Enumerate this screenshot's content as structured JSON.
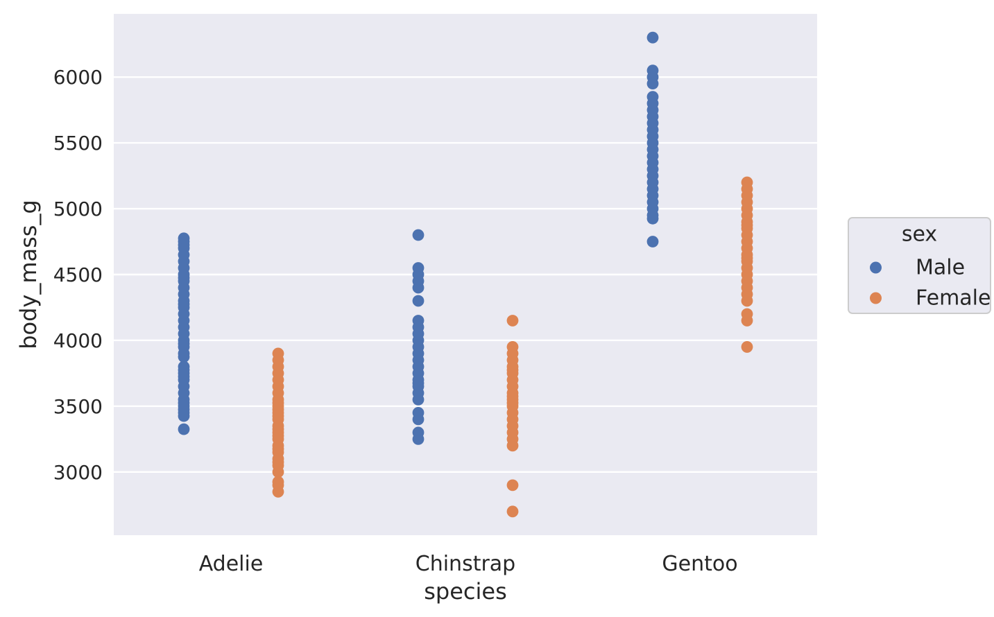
{
  "figure": {
    "background_color": "#ffffff",
    "axes_background_color": "#eaeaf2",
    "gridline_color": "#ffffff",
    "text_color": "#262626",
    "legend_border_color": "#cccccc"
  },
  "chart_data": {
    "type": "scatter",
    "title": "",
    "xlabel": "species",
    "ylabel": "body_mass_g",
    "categories": [
      "Adelie",
      "Chinstrap",
      "Gentoo"
    ],
    "yticks": [
      3000,
      3500,
      4000,
      4500,
      5000,
      5500,
      6000
    ],
    "ytick_labels": [
      "3000",
      "3500",
      "4000",
      "4500",
      "5000",
      "5500",
      "6000"
    ],
    "ylim": [
      2520,
      6480
    ],
    "grid": "horizontal white gridlines on",
    "marker": "filled circle, no jitter, dodged by hue",
    "legend": {
      "title": "sex",
      "position": "right of axes, vertically centered"
    },
    "series": [
      {
        "name": "Male",
        "color": "#4c72b0",
        "points_by_category": {
          "Adelie": [
            3325,
            3425,
            3450,
            3475,
            3500,
            3525,
            3550,
            3600,
            3650,
            3700,
            3725,
            3750,
            3775,
            3800,
            3875,
            3900,
            3950,
            3975,
            4000,
            4050,
            4100,
            4150,
            4200,
            4250,
            4275,
            4300,
            4350,
            4400,
            4450,
            4475,
            4500,
            4550,
            4600,
            4650,
            4700,
            4725,
            4750,
            4775
          ],
          "Chinstrap": [
            3250,
            3300,
            3400,
            3450,
            3550,
            3600,
            3650,
            3675,
            3700,
            3750,
            3800,
            3850,
            3900,
            3950,
            4000,
            4050,
            4100,
            4150,
            4300,
            4400,
            4450,
            4500,
            4550,
            4800
          ],
          "Gentoo": [
            4750,
            4925,
            4950,
            5000,
            5050,
            5100,
            5150,
            5200,
            5250,
            5300,
            5350,
            5400,
            5450,
            5500,
            5550,
            5600,
            5650,
            5700,
            5750,
            5800,
            5850,
            5950,
            6000,
            6050,
            6300
          ]
        }
      },
      {
        "name": "Female",
        "color": "#dd8452",
        "points_by_category": {
          "Adelie": [
            2850,
            2900,
            2925,
            3000,
            3050,
            3075,
            3100,
            3150,
            3175,
            3200,
            3250,
            3275,
            3300,
            3325,
            3350,
            3400,
            3425,
            3450,
            3475,
            3500,
            3525,
            3550,
            3600,
            3650,
            3700,
            3750,
            3800,
            3850,
            3900
          ],
          "Chinstrap": [
            2700,
            2900,
            3200,
            3250,
            3300,
            3350,
            3400,
            3450,
            3500,
            3525,
            3550,
            3575,
            3600,
            3650,
            3700,
            3750,
            3775,
            3800,
            3850,
            3900,
            3950,
            4150
          ],
          "Gentoo": [
            3950,
            4150,
            4200,
            4300,
            4350,
            4400,
            4450,
            4500,
            4550,
            4600,
            4625,
            4650,
            4700,
            4750,
            4800,
            4850,
            4875,
            4900,
            4950,
            5000,
            5050,
            5100,
            5150,
            5200
          ]
        }
      }
    ]
  }
}
